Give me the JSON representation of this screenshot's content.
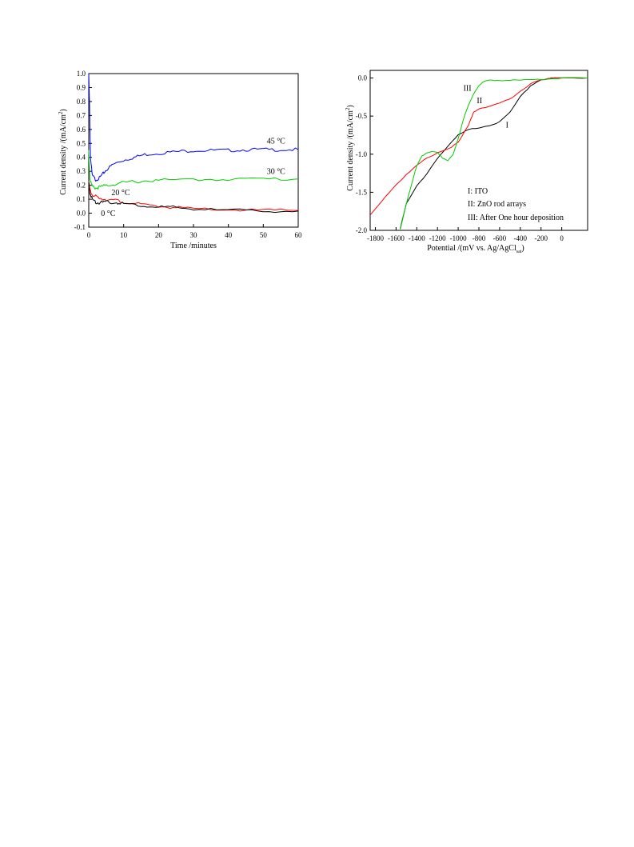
{
  "chart_data": [
    {
      "type": "line",
      "xlabel": "Time /minutes",
      "ylabel": "Current density /(mA/cm",
      "ylabel_sup": "2",
      "ylabel_close": ")",
      "xlim": [
        0,
        60
      ],
      "ylim": [
        -0.1,
        1.0
      ],
      "xticks": [
        0,
        10,
        20,
        30,
        40,
        50,
        60
      ],
      "yticks": [
        -0.1,
        0.0,
        0.1,
        0.2,
        0.3,
        0.4,
        0.5,
        0.6,
        0.7,
        0.8,
        0.9,
        1.0
      ],
      "xtick_labels": [
        "0",
        "10",
        "20",
        "30",
        "40",
        "50",
        "60"
      ],
      "ytick_labels": [
        "-0.1",
        "0.0",
        "0.1",
        "0.2",
        "0.3",
        "0.4",
        "0.5",
        "0.6",
        "0.7",
        "0.8",
        "0.9",
        "1.0"
      ],
      "grid": false,
      "series": [
        {
          "name": "45 °C",
          "color": "#0000ff",
          "x": [
            0,
            0.2,
            0.5,
            1,
            2,
            3,
            4,
            5,
            7,
            10,
            13,
            16,
            20,
            25,
            30,
            35,
            40,
            45,
            50,
            55,
            60
          ],
          "y": [
            1.0,
            0.8,
            0.4,
            0.27,
            0.24,
            0.25,
            0.28,
            0.31,
            0.35,
            0.38,
            0.4,
            0.42,
            0.43,
            0.44,
            0.45,
            0.45,
            0.45,
            0.455,
            0.455,
            0.455,
            0.455
          ]
        },
        {
          "name": "30 °C",
          "color": "#00cc00",
          "x": [
            0,
            0.3,
            1,
            2,
            3,
            5,
            8,
            10,
            15,
            20,
            30,
            40,
            50,
            60
          ],
          "y": [
            0.45,
            0.25,
            0.19,
            0.18,
            0.185,
            0.2,
            0.21,
            0.22,
            0.23,
            0.235,
            0.24,
            0.245,
            0.245,
            0.245
          ]
        },
        {
          "name": "20 °C",
          "color": "#ff0000",
          "x": [
            0,
            0.3,
            1,
            2,
            3,
            5,
            8,
            10,
            15,
            20,
            25,
            30,
            40,
            50,
            60
          ],
          "y": [
            0.24,
            0.17,
            0.13,
            0.12,
            0.11,
            0.1,
            0.09,
            0.08,
            0.06,
            0.05,
            0.04,
            0.03,
            0.025,
            0.02,
            0.02
          ]
        },
        {
          "name": "0 °C",
          "color": "#000000",
          "x": [
            0,
            0.3,
            1,
            2,
            3,
            5,
            8,
            10,
            15,
            20,
            25,
            30,
            40,
            50,
            60
          ],
          "y": [
            0.22,
            0.15,
            0.1,
            0.08,
            0.075,
            0.08,
            0.075,
            0.07,
            0.055,
            0.045,
            0.04,
            0.03,
            0.02,
            0.018,
            0.015
          ]
        }
      ],
      "annotations": [
        {
          "text": "45 °C",
          "x": 51,
          "y": 0.5,
          "color": "#000000"
        },
        {
          "text": "30 °C",
          "x": 51,
          "y": 0.28,
          "color": "#000000"
        },
        {
          "text": "20 °C",
          "x": 6.5,
          "y": 0.13,
          "color": "#000000"
        },
        {
          "text": "0 °C",
          "x": 3.5,
          "y": -0.02,
          "color": "#000000"
        }
      ]
    },
    {
      "type": "line",
      "xlabel": "Potential /(mV vs. Ag/AgCl",
      "xlabel_sub": "sat",
      "xlabel_close": ")",
      "ylabel": "Current density /(mA/cm",
      "ylabel_sup": "2",
      "ylabel_close": ")",
      "xlim": [
        -1850,
        250
      ],
      "ylim": [
        -2.0,
        0.1
      ],
      "xticks": [
        -1800,
        -1600,
        -1400,
        -1200,
        -1000,
        -800,
        -600,
        -400,
        -200,
        0
      ],
      "yticks": [
        -2.0,
        -1.5,
        -1.0,
        -0.5,
        0.0
      ],
      "xtick_labels": [
        "-1800",
        "-1600",
        "-1400",
        "-1200",
        "-1000",
        "-800",
        "-600",
        "-400",
        "-200",
        "0"
      ],
      "ytick_labels": [
        "-2.0",
        "-1.5",
        "-1.0",
        "-0.5",
        "0.0"
      ],
      "grid": false,
      "series": [
        {
          "name": "I",
          "color": "#000000",
          "x": [
            -1560,
            -1500,
            -1400,
            -1300,
            -1200,
            -1100,
            -1000,
            -900,
            -800,
            -700,
            -600,
            -500,
            -400,
            -300,
            -200,
            -100,
            0,
            100,
            250
          ],
          "y": [
            -1.98,
            -1.65,
            -1.42,
            -1.25,
            -1.05,
            -0.9,
            -0.75,
            -0.68,
            -0.65,
            -0.62,
            -0.58,
            -0.45,
            -0.25,
            -0.1,
            -0.02,
            -0.005,
            0.0,
            0.0,
            0.0
          ]
        },
        {
          "name": "II",
          "color": "#ff0000",
          "x": [
            -1850,
            -1700,
            -1600,
            -1500,
            -1400,
            -1300,
            -1200,
            -1100,
            -1000,
            -900,
            -850,
            -800,
            -700,
            -600,
            -500,
            -400,
            -300,
            -200,
            -100,
            0,
            250
          ],
          "y": [
            -1.8,
            -1.55,
            -1.4,
            -1.27,
            -1.15,
            -1.05,
            -0.98,
            -0.93,
            -0.85,
            -0.62,
            -0.45,
            -0.4,
            -0.37,
            -0.33,
            -0.28,
            -0.18,
            -0.07,
            -0.02,
            -0.005,
            0.0,
            0.0
          ]
        },
        {
          "name": "III",
          "color": "#00cc00",
          "x": [
            -1560,
            -1500,
            -1450,
            -1400,
            -1350,
            -1300,
            -1250,
            -1200,
            -1150,
            -1100,
            -1050,
            -1000,
            -950,
            -900,
            -850,
            -800,
            -750,
            -700,
            -650,
            -600,
            -500,
            -400,
            -300,
            -200,
            -100,
            0,
            250
          ],
          "y": [
            -1.98,
            -1.65,
            -1.4,
            -1.15,
            -1.02,
            -0.98,
            -0.97,
            -0.98,
            -1.05,
            -1.08,
            -1.0,
            -0.8,
            -0.55,
            -0.35,
            -0.2,
            -0.1,
            -0.05,
            -0.03,
            -0.03,
            -0.03,
            -0.03,
            -0.03,
            -0.025,
            -0.02,
            -0.01,
            0.0,
            0.0
          ]
        }
      ],
      "annotations": [
        {
          "text": "III",
          "x": -950,
          "y": -0.17
        },
        {
          "text": "II",
          "x": -820,
          "y": -0.33
        },
        {
          "text": "I",
          "x": -540,
          "y": -0.65
        }
      ],
      "legend": {
        "placement": "bottom-right",
        "items": [
          "I:   ITO",
          "II:  ZnO rod arrays",
          "III:  After One hour deposition"
        ]
      }
    }
  ]
}
